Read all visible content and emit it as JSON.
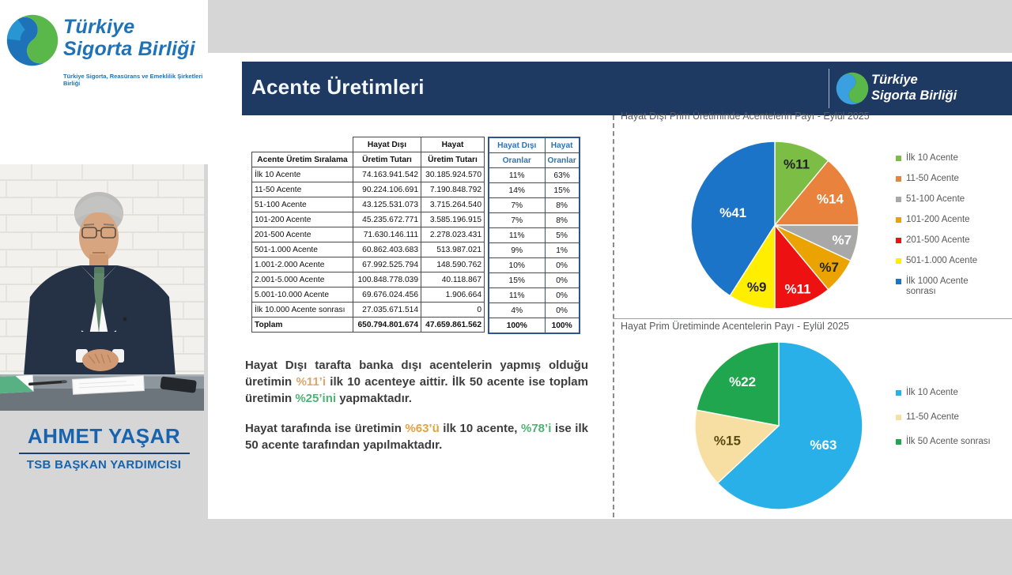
{
  "brand": {
    "line1": "Türkiye",
    "line2": "Sigorta Birliği",
    "tagline": "Türkiye Sigorta, Reasürans ve Emeklilik Şirketleri Birliği",
    "blue": "#1e73b8",
    "green_light": "#8dc63f",
    "green_dark": "#00a651"
  },
  "speaker": {
    "name": "AHMET YAŞAR",
    "title": "TSB BAŞKAN YARDIMCISI"
  },
  "slide": {
    "title": "Acente Üretimleri",
    "header_bg": "#1e3a62",
    "table": {
      "corner_label": "Acente Üretim Sıralama",
      "black_groups": [
        "Hayat Dışı",
        "Hayat"
      ],
      "black_sub": "Üretim Tutarı",
      "blue_groups": [
        "Hayat Dışı",
        "Hayat"
      ],
      "blue_sub": "Oranlar",
      "rows": [
        [
          "İlk 10 Acente",
          "74.163.941.542",
          "30.185.924.570",
          "11%",
          "63%"
        ],
        [
          "11-50 Acente",
          "90.224.106.691",
          "7.190.848.792",
          "14%",
          "15%"
        ],
        [
          "51-100 Acente",
          "43.125.531.073",
          "3.715.264.540",
          "7%",
          "8%"
        ],
        [
          "101-200 Acente",
          "45.235.672.771",
          "3.585.196.915",
          "7%",
          "8%"
        ],
        [
          "201-500 Acente",
          "71.630.146.111",
          "2.278.023.431",
          "11%",
          "5%"
        ],
        [
          "501-1.000 Acente",
          "60.862.403.683",
          "513.987.021",
          "9%",
          "1%"
        ],
        [
          "1.001-2.000 Acente",
          "67.992.525.794",
          "148.590.762",
          "10%",
          "0%"
        ],
        [
          "2.001-5.000 Acente",
          "100.848.778.039",
          "40.118.867",
          "15%",
          "0%"
        ],
        [
          "5.001-10.000 Acente",
          "69.676.024.456",
          "1.906.664",
          "11%",
          "0%"
        ],
        [
          "İlk 10.000 Acente sonrası",
          "27.035.671.514",
          "0",
          "4%",
          "0%"
        ]
      ],
      "total_row": [
        "Toplam",
        "650.794.801.674",
        "47.659.861.562",
        "100%",
        "100%"
      ]
    },
    "paragraphs": [
      [
        {
          "t": "Hayat Dışı tarafta banka dışı acentelerin yapmış olduğu üretimin "
        },
        {
          "t": "%11’i",
          "c": "#dfa569"
        },
        {
          "t": " ilk 10 acenteye aittir. İlk 50 acente ise toplam üretimin "
        },
        {
          "t": "%25’ini",
          "c": "#4fb274"
        },
        {
          "t": " yapmaktadır."
        }
      ],
      [
        {
          "t": "Hayat tarafında ise üretimin "
        },
        {
          "t": "%63’ü",
          "c": "#e5a33e"
        },
        {
          "t": " ilk 10 acente, "
        },
        {
          "t": "%78’i",
          "c": "#4fb274"
        },
        {
          "t": " ise ilk 50 acente tarafından yapılmaktadır."
        }
      ]
    ]
  },
  "chart_data": [
    {
      "type": "pie",
      "title": "Hayat Dışı Prim Üretiminde Acentelerin Payı - Eylül 2025",
      "legend_position": "right",
      "start_angle_deg": 0,
      "slices": [
        {
          "label": "İlk 10 Acente",
          "value": 11,
          "display": "%11",
          "color": "#7cbe45",
          "label_color": "#222222",
          "label_r": 0.77
        },
        {
          "label": "11-50 Acente",
          "value": 14,
          "display": "%14",
          "color": "#e8823c",
          "label_color": "#ffffff",
          "label_r": 0.73
        },
        {
          "label": "51-100 Acente",
          "value": 7,
          "display": "%7",
          "color": "#a8a8a8",
          "label_color": "#ffffff",
          "label_r": 0.82
        },
        {
          "label": "101-200 Acente",
          "value": 7,
          "display": "%7",
          "color": "#eaa300",
          "label_color": "#222222",
          "label_r": 0.82
        },
        {
          "label": "201-500 Acente",
          "value": 11,
          "display": "%11",
          "color": "#ee1111",
          "label_color": "#ffffff",
          "label_r": 0.81
        },
        {
          "label": "501-1.000 Acente",
          "value": 9,
          "display": "%9",
          "color": "#ffee00",
          "label_color": "#222222",
          "label_r": 0.77
        },
        {
          "label": "İlk 1000 Acente sonrası",
          "value": 41,
          "display": "%41",
          "color": "#1b74c8",
          "label_color": "#ffffff",
          "label_r": 0.52
        }
      ]
    },
    {
      "type": "pie",
      "title": "Hayat Prim Üretiminde Acentelerin Payı - Eylül 2025",
      "legend_position": "right",
      "start_angle_deg": 0,
      "slices": [
        {
          "label": "İlk 10 Acente",
          "value": 63,
          "display": "%63",
          "color": "#29b0e8",
          "label_color": "#ffffff",
          "label_r": 0.58
        },
        {
          "label": "11-50 Acente",
          "value": 15,
          "display": "%15",
          "color": "#f7dfa3",
          "label_color": "#5a4a12",
          "label_r": 0.64
        },
        {
          "label": "İlk 50 Acente sonrası",
          "value": 22,
          "display": "%22",
          "color": "#1fa64e",
          "label_color": "#ffffff",
          "label_r": 0.68
        }
      ]
    },
    {
      "type": "table",
      "title": "Acente Üretim Sıralama",
      "columns": [
        "Acente Üretim Sıralama",
        "Hayat Dışı Üretim Tutarı",
        "Hayat Üretim Tutarı",
        "Hayat Dışı Oranlar",
        "Hayat Oranlar"
      ],
      "rows": [
        [
          "İlk 10 Acente",
          "74.163.941.542",
          "30.185.924.570",
          "11%",
          "63%"
        ],
        [
          "11-50 Acente",
          "90.224.106.691",
          "7.190.848.792",
          "14%",
          "15%"
        ],
        [
          "51-100 Acente",
          "43.125.531.073",
          "3.715.264.540",
          "7%",
          "8%"
        ],
        [
          "101-200 Acente",
          "45.235.672.771",
          "3.585.196.915",
          "7%",
          "8%"
        ],
        [
          "201-500 Acente",
          "71.630.146.111",
          "2.278.023.431",
          "11%",
          "5%"
        ],
        [
          "501-1.000 Acente",
          "60.862.403.683",
          "513.987.021",
          "9%",
          "1%"
        ],
        [
          "1.001-2.000 Acente",
          "67.992.525.794",
          "148.590.762",
          "10%",
          "0%"
        ],
        [
          "2.001-5.000 Acente",
          "100.848.778.039",
          "40.118.867",
          "15%",
          "0%"
        ],
        [
          "5.001-10.000 Acente",
          "69.676.024.456",
          "1.906.664",
          "11%",
          "0%"
        ],
        [
          "İlk 10.000 Acente sonrası",
          "27.035.671.514",
          "0",
          "4%",
          "0%"
        ],
        [
          "Toplam",
          "650.794.801.674",
          "47.659.861.562",
          "100%",
          "100%"
        ]
      ]
    }
  ]
}
